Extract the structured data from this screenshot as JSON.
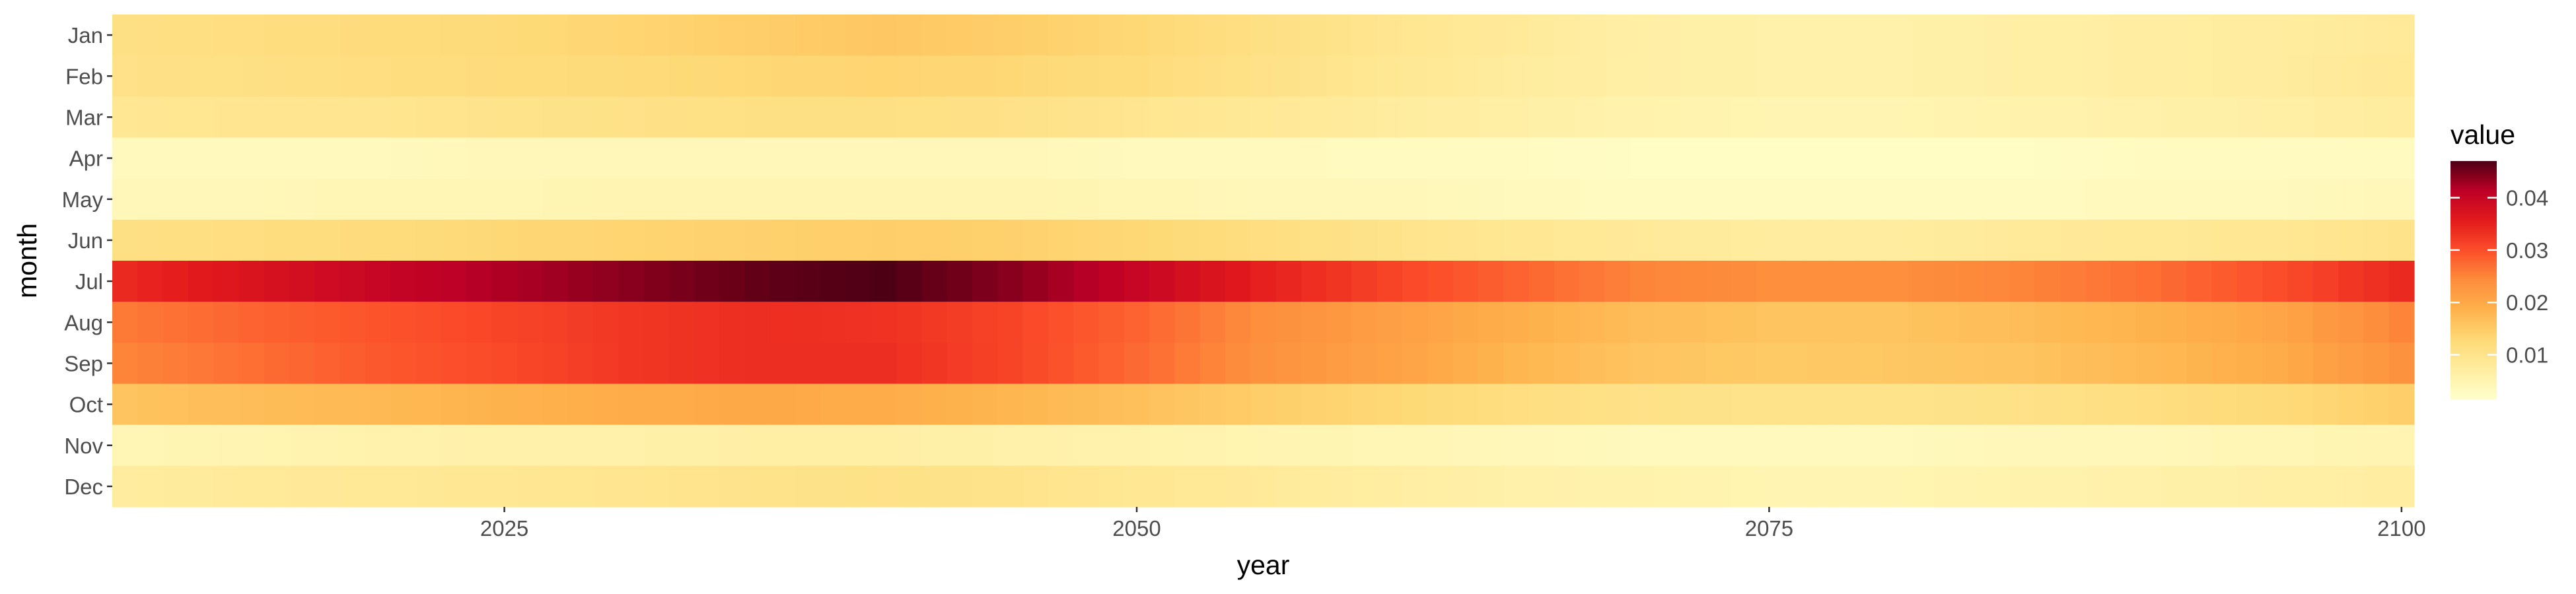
{
  "chart_data": {
    "type": "heatmap",
    "title": "",
    "xlabel": "year",
    "ylabel": "month",
    "x_range": [
      2010,
      2100
    ],
    "x_ticks": [
      2025,
      2050,
      2075,
      2100
    ],
    "x_tick_labels": [
      "2025",
      "2050",
      "2075",
      "2100"
    ],
    "months": [
      "Jan",
      "Feb",
      "Mar",
      "Apr",
      "May",
      "Jun",
      "Jul",
      "Aug",
      "Sep",
      "Oct",
      "Nov",
      "Dec"
    ],
    "years": [
      2010,
      2011,
      2012,
      2013,
      2014,
      2015,
      2016,
      2017,
      2018,
      2019,
      2020,
      2021,
      2022,
      2023,
      2024,
      2025,
      2026,
      2027,
      2028,
      2029,
      2030,
      2031,
      2032,
      2033,
      2034,
      2035,
      2036,
      2037,
      2038,
      2039,
      2040,
      2041,
      2042,
      2043,
      2044,
      2045,
      2046,
      2047,
      2048,
      2049,
      2050,
      2051,
      2052,
      2053,
      2054,
      2055,
      2056,
      2057,
      2058,
      2059,
      2060,
      2061,
      2062,
      2063,
      2064,
      2065,
      2066,
      2067,
      2068,
      2069,
      2070,
      2071,
      2072,
      2073,
      2074,
      2075,
      2076,
      2077,
      2078,
      2079,
      2080,
      2081,
      2082,
      2083,
      2084,
      2085,
      2086,
      2087,
      2088,
      2089,
      2090,
      2091,
      2092,
      2093,
      2094,
      2095,
      2096,
      2097,
      2098,
      2099,
      2100
    ],
    "anchor_years": [
      2010,
      2015,
      2020,
      2025,
      2030,
      2035,
      2040,
      2045,
      2050,
      2055,
      2060,
      2065,
      2070,
      2075,
      2080,
      2085,
      2090,
      2095,
      2100
    ],
    "anchor_values": {
      "Jan": [
        0.011,
        0.0115,
        0.012,
        0.0125,
        0.0135,
        0.0145,
        0.0155,
        0.0145,
        0.013,
        0.011,
        0.0095,
        0.008,
        0.0065,
        0.006,
        0.006,
        0.0065,
        0.007,
        0.0075,
        0.008
      ],
      "Feb": [
        0.0105,
        0.011,
        0.0115,
        0.012,
        0.0125,
        0.013,
        0.0135,
        0.013,
        0.012,
        0.0105,
        0.009,
        0.0075,
        0.0065,
        0.006,
        0.006,
        0.0065,
        0.007,
        0.0075,
        0.0085
      ],
      "Mar": [
        0.009,
        0.0095,
        0.0095,
        0.01,
        0.0105,
        0.011,
        0.011,
        0.0105,
        0.0095,
        0.0085,
        0.0075,
        0.0065,
        0.0055,
        0.005,
        0.005,
        0.0055,
        0.006,
        0.0065,
        0.0075
      ],
      "Apr": [
        0.0035,
        0.0035,
        0.0035,
        0.004,
        0.004,
        0.004,
        0.004,
        0.004,
        0.0035,
        0.0035,
        0.003,
        0.003,
        0.0025,
        0.0025,
        0.0025,
        0.0025,
        0.003,
        0.003,
        0.003
      ],
      "May": [
        0.004,
        0.004,
        0.0045,
        0.0045,
        0.005,
        0.005,
        0.005,
        0.005,
        0.0045,
        0.004,
        0.004,
        0.0035,
        0.003,
        0.003,
        0.003,
        0.003,
        0.0035,
        0.0035,
        0.004
      ],
      "Jun": [
        0.011,
        0.0115,
        0.012,
        0.013,
        0.0135,
        0.014,
        0.0145,
        0.014,
        0.013,
        0.0115,
        0.01,
        0.009,
        0.008,
        0.0075,
        0.0075,
        0.008,
        0.0085,
        0.009,
        0.01
      ],
      "Jul": [
        0.034,
        0.037,
        0.04,
        0.042,
        0.044,
        0.046,
        0.047,
        0.044,
        0.04,
        0.035,
        0.031,
        0.028,
        0.025,
        0.024,
        0.024,
        0.025,
        0.027,
        0.03,
        0.034
      ],
      "Aug": [
        0.026,
        0.028,
        0.0295,
        0.031,
        0.0325,
        0.0335,
        0.033,
        0.031,
        0.028,
        0.024,
        0.0215,
        0.019,
        0.017,
        0.016,
        0.016,
        0.017,
        0.0185,
        0.0205,
        0.025
      ],
      "Sep": [
        0.025,
        0.027,
        0.029,
        0.0305,
        0.0325,
        0.0335,
        0.0335,
        0.031,
        0.0275,
        0.0235,
        0.021,
        0.018,
        0.016,
        0.015,
        0.0155,
        0.016,
        0.0175,
        0.0195,
        0.0235
      ],
      "Oct": [
        0.016,
        0.017,
        0.0175,
        0.0185,
        0.0195,
        0.02,
        0.0195,
        0.018,
        0.0165,
        0.0145,
        0.013,
        0.0115,
        0.0105,
        0.01,
        0.01,
        0.0105,
        0.0115,
        0.0125,
        0.0145
      ],
      "Nov": [
        0.0045,
        0.005,
        0.0055,
        0.006,
        0.006,
        0.0065,
        0.0065,
        0.006,
        0.0055,
        0.005,
        0.0045,
        0.004,
        0.0035,
        0.0035,
        0.0035,
        0.004,
        0.004,
        0.0045,
        0.005
      ],
      "Dec": [
        0.0075,
        0.008,
        0.0085,
        0.009,
        0.0095,
        0.01,
        0.0105,
        0.01,
        0.009,
        0.008,
        0.007,
        0.006,
        0.0055,
        0.005,
        0.005,
        0.0055,
        0.006,
        0.0065,
        0.007
      ]
    },
    "legend": {
      "title": "value",
      "position": "right",
      "min": 0.0015,
      "max": 0.047,
      "breaks": [
        0.01,
        0.02,
        0.03,
        0.04
      ],
      "break_labels": [
        "0.01",
        "0.02",
        "0.03",
        "0.04"
      ]
    },
    "color_scale": {
      "name": "YlOrRd",
      "stops": [
        {
          "t": 0.0,
          "color": "#ffffcc"
        },
        {
          "t": 0.125,
          "color": "#ffeda0"
        },
        {
          "t": 0.25,
          "color": "#fed976"
        },
        {
          "t": 0.375,
          "color": "#feb24c"
        },
        {
          "t": 0.5,
          "color": "#fd8d3c"
        },
        {
          "t": 0.625,
          "color": "#fc4e2a"
        },
        {
          "t": 0.75,
          "color": "#e31a1c"
        },
        {
          "t": 0.875,
          "color": "#bd0026"
        },
        {
          "t": 1.0,
          "color": "#4d0014"
        }
      ]
    },
    "panel_background": "#ebebeb",
    "grid": false
  }
}
